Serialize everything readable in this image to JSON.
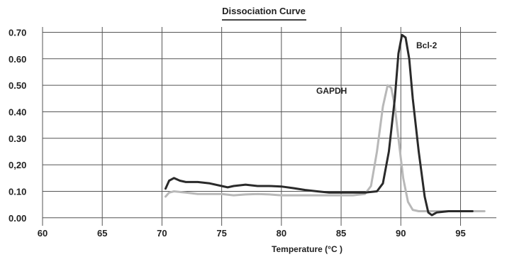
{
  "chart_data": {
    "type": "line",
    "title": "Dissociation Curve",
    "xlabel": "Temperature (°C )",
    "ylabel": "",
    "xlim": [
      60,
      98
    ],
    "ylim": [
      -0.03,
      0.72
    ],
    "x_ticks": [
      {
        "value": 60,
        "label": "60"
      },
      {
        "value": 65,
        "label": "65"
      },
      {
        "value": 70,
        "label": "70"
      },
      {
        "value": 75,
        "label": "75"
      },
      {
        "value": 80,
        "label": "80"
      },
      {
        "value": 85,
        "label": "85"
      },
      {
        "value": 90,
        "label": "90"
      },
      {
        "value": 95,
        "label": "95"
      }
    ],
    "y_ticks": [
      {
        "value": 0.0,
        "label": "0.00"
      },
      {
        "value": 0.1,
        "label": "0.10"
      },
      {
        "value": 0.2,
        "label": "0,20"
      },
      {
        "value": 0.3,
        "label": "0.30"
      },
      {
        "value": 0.4,
        "label": "0.40"
      },
      {
        "value": 0.5,
        "label": "0.50"
      },
      {
        "value": 0.6,
        "label": "0.60"
      },
      {
        "value": 0.7,
        "label": "0.70"
      }
    ],
    "grid": true,
    "series": [
      {
        "name": "Bcl-2",
        "color": "#2a2a2a",
        "x": [
          70.3,
          70.6,
          71,
          71.5,
          72,
          73,
          74,
          75,
          75.5,
          76,
          77,
          78,
          79,
          80,
          81,
          82,
          83,
          84,
          85,
          86,
          87,
          88,
          88.5,
          89,
          89.5,
          89.8,
          90.1,
          90.4,
          90.7,
          91,
          91.5,
          92,
          92.3,
          92.6,
          93,
          94,
          95,
          96
        ],
        "y": [
          0.11,
          0.14,
          0.15,
          0.14,
          0.135,
          0.135,
          0.13,
          0.12,
          0.115,
          0.12,
          0.125,
          0.12,
          0.12,
          0.118,
          0.112,
          0.105,
          0.1,
          0.095,
          0.095,
          0.095,
          0.095,
          0.1,
          0.13,
          0.25,
          0.45,
          0.62,
          0.69,
          0.68,
          0.6,
          0.45,
          0.25,
          0.08,
          0.02,
          0.01,
          0.02,
          0.025,
          0.025,
          0.025
        ]
      },
      {
        "name": "GAPDH",
        "color": "#b8b8b8",
        "x": [
          70.3,
          70.6,
          71,
          72,
          73,
          74,
          75,
          76,
          77,
          78,
          79,
          80,
          81,
          82,
          83,
          84,
          85,
          86,
          87,
          87.5,
          88,
          88.5,
          88.9,
          89.2,
          89.5,
          89.8,
          90.2,
          90.6,
          91,
          91.5,
          92,
          93,
          94,
          95,
          96,
          97
        ],
        "y": [
          0.08,
          0.095,
          0.1,
          0.095,
          0.09,
          0.09,
          0.09,
          0.085,
          0.088,
          0.09,
          0.088,
          0.085,
          0.085,
          0.085,
          0.085,
          0.085,
          0.085,
          0.085,
          0.09,
          0.12,
          0.25,
          0.42,
          0.5,
          0.49,
          0.42,
          0.3,
          0.15,
          0.06,
          0.03,
          0.025,
          0.025,
          0.025,
          0.025,
          0.025,
          0.025,
          0.025
        ]
      }
    ],
    "annotations": [
      {
        "text": "Bcl-2",
        "series": "Bcl-2"
      },
      {
        "text": "GAPDH",
        "series": "GAPDH"
      }
    ]
  }
}
